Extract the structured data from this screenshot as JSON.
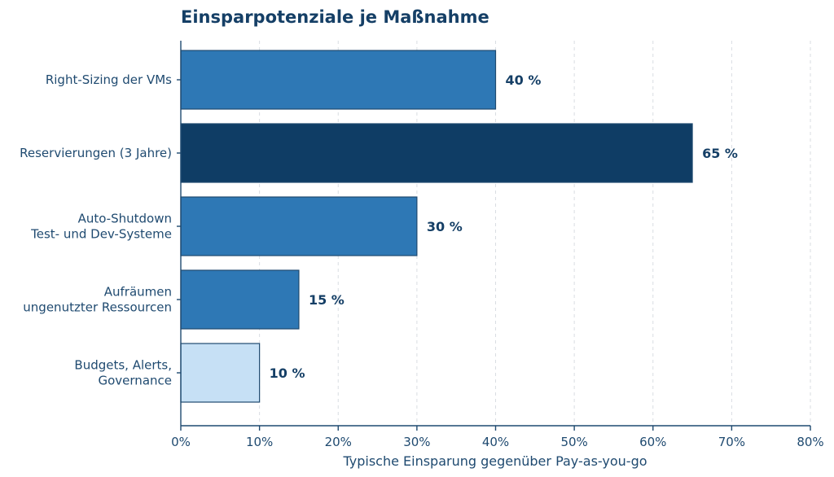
{
  "chart_data": {
    "type": "bar",
    "orientation": "horizontal",
    "title": "Einsparpotenziale je Maßnahme",
    "xlabel": "Typische Einsparung gegenüber Pay-as-you-go",
    "ylabel": "",
    "xlim": [
      0,
      80
    ],
    "x_ticks": [
      0,
      10,
      20,
      30,
      40,
      50,
      60,
      70,
      80
    ],
    "x_tick_suffix": "%",
    "grid": "vertical dashed",
    "categories": [
      [
        "Right-Sizing der VMs"
      ],
      [
        "Reservierungen (3 Jahre)"
      ],
      [
        "Auto-Shutdown",
        "Test- und Dev-Systeme"
      ],
      [
        "Aufräumen",
        "ungenutzter Ressourcen"
      ],
      [
        "Budgets, Alerts,",
        "Governance"
      ]
    ],
    "values": [
      40,
      65,
      30,
      15,
      10
    ],
    "value_labels": [
      "40 %",
      "65 %",
      "30 %",
      "15 %",
      "10 %"
    ],
    "colors": [
      "#2e78b5",
      "#0f3d65",
      "#2e78b5",
      "#2e78b5",
      "#c6e0f5"
    ],
    "axis_color": "#1f4a70"
  }
}
